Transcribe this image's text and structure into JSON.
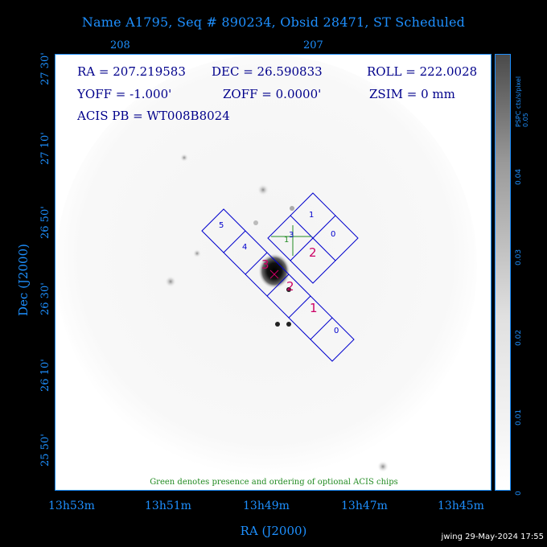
{
  "title": "Name A1795, Seq # 890234, Obsid 28471, ST Scheduled",
  "top_axis": {
    "ticks": [
      "208",
      "207"
    ]
  },
  "info": {
    "ra": "RA = 207.219583",
    "dec": "DEC = 26.590833",
    "roll": "ROLL = 222.0028",
    "yoff": "YOFF =  -1.000'",
    "zoff": "ZOFF =  0.0000'",
    "zsim": "ZSIM = 0 mm",
    "acis_pb": "ACIS PB = WT008B8024"
  },
  "chip_labels": {
    "s_array": [
      "5",
      "4",
      "3",
      "2",
      "1",
      "0"
    ],
    "i_array": [
      "1",
      "0",
      "3",
      "2"
    ],
    "optional": [
      "3",
      "1"
    ]
  },
  "note": "Green denotes presence and ordering of optional ACIS chips",
  "y_axis": {
    "label": "Dec (J2000)",
    "ticks": [
      "27 30'",
      "27 10'",
      "26 50'",
      "26 30'",
      "26 10'",
      "25 50'"
    ]
  },
  "x_axis": {
    "label": "RA (J2000)",
    "ticks": [
      "13h53m",
      "13h51m",
      "13h49m",
      "13h47m",
      "13h45m"
    ]
  },
  "colorbar": {
    "label_line1": "PSPC cts/s/pixel",
    "label_line2": "0.05",
    "ticks": [
      "0",
      "0.01",
      "0.02",
      "0.03",
      "0.04"
    ]
  },
  "timestamp": "jwing 29-May-2024 17:55",
  "colors": {
    "axis_blue": "#1e90ff",
    "chip_blue": "#0000cd",
    "label_magenta": "#cc0066",
    "optional_green": "#228b22"
  }
}
